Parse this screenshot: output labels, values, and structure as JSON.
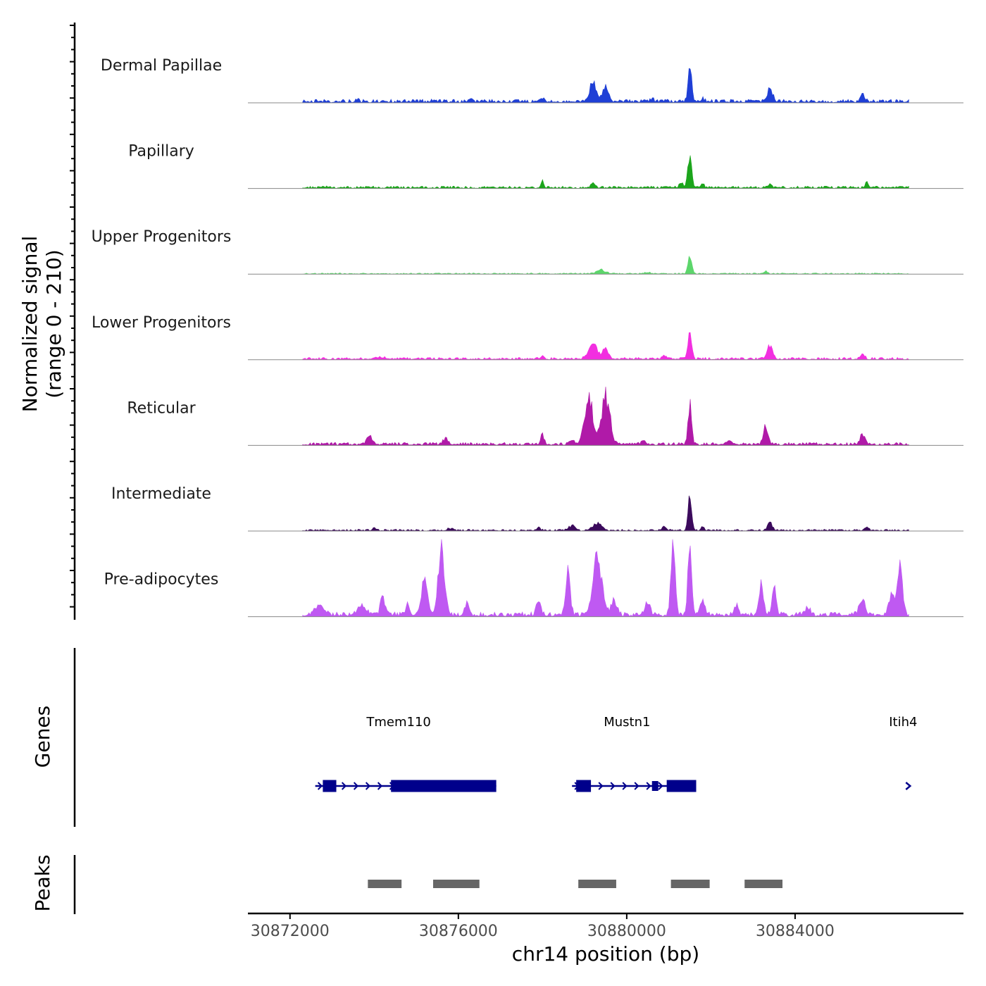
{
  "chart_data": {
    "type": "area",
    "title": "",
    "ylabel_line1": "Normalized signal",
    "ylabel_line2": "(range 0 - 210)",
    "y_range": [
      0,
      210
    ],
    "xlabel": "chr14 position (bp)",
    "x_range": [
      30871000,
      30888000
    ],
    "x_ticks": [
      30872000,
      30876000,
      30880000,
      30884000
    ],
    "x_tick_labels": [
      "30872000",
      "30876000",
      "30880000",
      "30884000"
    ],
    "colors": {
      "dermal_papillae": "#1f3fd6",
      "papillary": "#1ca51c",
      "upper_progenitors": "#5cd66b",
      "lower_progenitors": "#f22fe0",
      "reticular": "#b01aa8",
      "intermediate": "#3b0a5c",
      "pre_adipocytes": "#bf59f2",
      "gene": "#00008b",
      "peak": "#666666"
    },
    "tracks": [
      {
        "name": "Dermal Papillae",
        "color_key": "dermal_papillae",
        "background": 3,
        "peaks": [
          [
            30873600,
            2.5,
            60
          ],
          [
            30875400,
            2.5,
            60
          ],
          [
            30876300,
            2,
            60
          ],
          [
            30878000,
            5,
            70
          ],
          [
            30879200,
            28,
            110
          ],
          [
            30879500,
            20,
            100
          ],
          [
            30880600,
            3,
            70
          ],
          [
            30881500,
            51,
            60
          ],
          [
            30881800,
            5,
            60
          ],
          [
            30883400,
            16,
            90
          ],
          [
            30885600,
            12,
            70
          ]
        ]
      },
      {
        "name": "Papillary",
        "color_key": "papillary",
        "background": 2,
        "peaks": [
          [
            30872800,
            2,
            60
          ],
          [
            30878000,
            9,
            50
          ],
          [
            30879200,
            6,
            80
          ],
          [
            30881300,
            8,
            60
          ],
          [
            30881500,
            51,
            60
          ],
          [
            30881800,
            5,
            60
          ],
          [
            30883400,
            5,
            70
          ],
          [
            30885700,
            7,
            50
          ],
          [
            30886700,
            3,
            40
          ]
        ]
      },
      {
        "name": "Upper Progenitors",
        "color_key": "upper_progenitors",
        "background": 1,
        "peaks": [
          [
            30879400,
            5,
            150
          ],
          [
            30880500,
            2,
            80
          ],
          [
            30881500,
            26,
            60
          ],
          [
            30883300,
            3,
            70
          ]
        ]
      },
      {
        "name": "Lower Progenitors",
        "color_key": "lower_progenitors",
        "background": 2,
        "peaks": [
          [
            30874100,
            3,
            150
          ],
          [
            30878000,
            5,
            60
          ],
          [
            30879200,
            20,
            150
          ],
          [
            30879500,
            15,
            100
          ],
          [
            30880900,
            5,
            80
          ],
          [
            30881500,
            41,
            60
          ],
          [
            30883400,
            18,
            90
          ],
          [
            30885600,
            7,
            70
          ]
        ]
      },
      {
        "name": "Reticular",
        "color_key": "reticular",
        "background": 2.5,
        "peaks": [
          [
            30873900,
            12,
            90
          ],
          [
            30875700,
            7,
            90
          ],
          [
            30878000,
            13,
            60
          ],
          [
            30878700,
            5,
            100
          ],
          [
            30879100,
            65,
            140
          ],
          [
            30879500,
            68,
            140
          ],
          [
            30880400,
            5,
            80
          ],
          [
            30881500,
            55,
            60
          ],
          [
            30882400,
            5,
            80
          ],
          [
            30883300,
            24,
            80
          ],
          [
            30885600,
            14,
            80
          ]
        ]
      },
      {
        "name": "Intermediate",
        "color_key": "intermediate",
        "background": 1.5,
        "peaks": [
          [
            30874000,
            4,
            60
          ],
          [
            30875800,
            3,
            80
          ],
          [
            30877900,
            5,
            60
          ],
          [
            30878700,
            7,
            100
          ],
          [
            30879300,
            10,
            150
          ],
          [
            30880900,
            5,
            80
          ],
          [
            30881500,
            51,
            60
          ],
          [
            30881800,
            5,
            60
          ],
          [
            30883400,
            15,
            70
          ],
          [
            30885700,
            4,
            70
          ]
        ]
      },
      {
        "name": "Pre-adipocytes",
        "color_key": "pre_adipocytes",
        "background": 4,
        "peaks": [
          [
            30872700,
            14,
            150
          ],
          [
            30873700,
            12,
            150
          ],
          [
            30874200,
            28,
            70
          ],
          [
            30874800,
            18,
            60
          ],
          [
            30875200,
            48,
            100
          ],
          [
            30875600,
            88,
            110
          ],
          [
            30876200,
            15,
            80
          ],
          [
            30877900,
            22,
            70
          ],
          [
            30878600,
            58,
            80
          ],
          [
            30879300,
            79,
            150
          ],
          [
            30879700,
            20,
            100
          ],
          [
            30880500,
            18,
            80
          ],
          [
            30881100,
            105,
            70
          ],
          [
            30881500,
            102,
            60
          ],
          [
            30881800,
            22,
            80
          ],
          [
            30882600,
            12,
            80
          ],
          [
            30883200,
            46,
            70
          ],
          [
            30883500,
            40,
            70
          ],
          [
            30884300,
            10,
            80
          ],
          [
            30885600,
            20,
            100
          ],
          [
            30886300,
            32,
            100
          ],
          [
            30886500,
            73,
            80
          ]
        ]
      }
    ],
    "genes_label": "Genes",
    "genes": [
      {
        "name": "Tmem110",
        "start": 30872600,
        "end": 30876900,
        "strand": "+",
        "exons": [
          [
            30872780,
            30873100
          ],
          [
            30874400,
            30876900
          ]
        ]
      },
      {
        "name": "Mustn1",
        "start": 30878700,
        "end": 30881650,
        "strand": "+",
        "exons": [
          [
            30878800,
            30879150
          ],
          [
            30880600,
            30880750
          ],
          [
            30880950,
            30881650
          ]
        ]
      },
      {
        "name": "Itih4",
        "start": 30886600,
        "end": 30886700,
        "strand": "+",
        "exons": []
      }
    ],
    "peaks_label": "Peaks",
    "peaks": [
      [
        30873850,
        30874650
      ],
      [
        30875400,
        30876500
      ],
      [
        30878850,
        30879750
      ],
      [
        30881050,
        30881970
      ],
      [
        30882800,
        30883700
      ]
    ]
  }
}
